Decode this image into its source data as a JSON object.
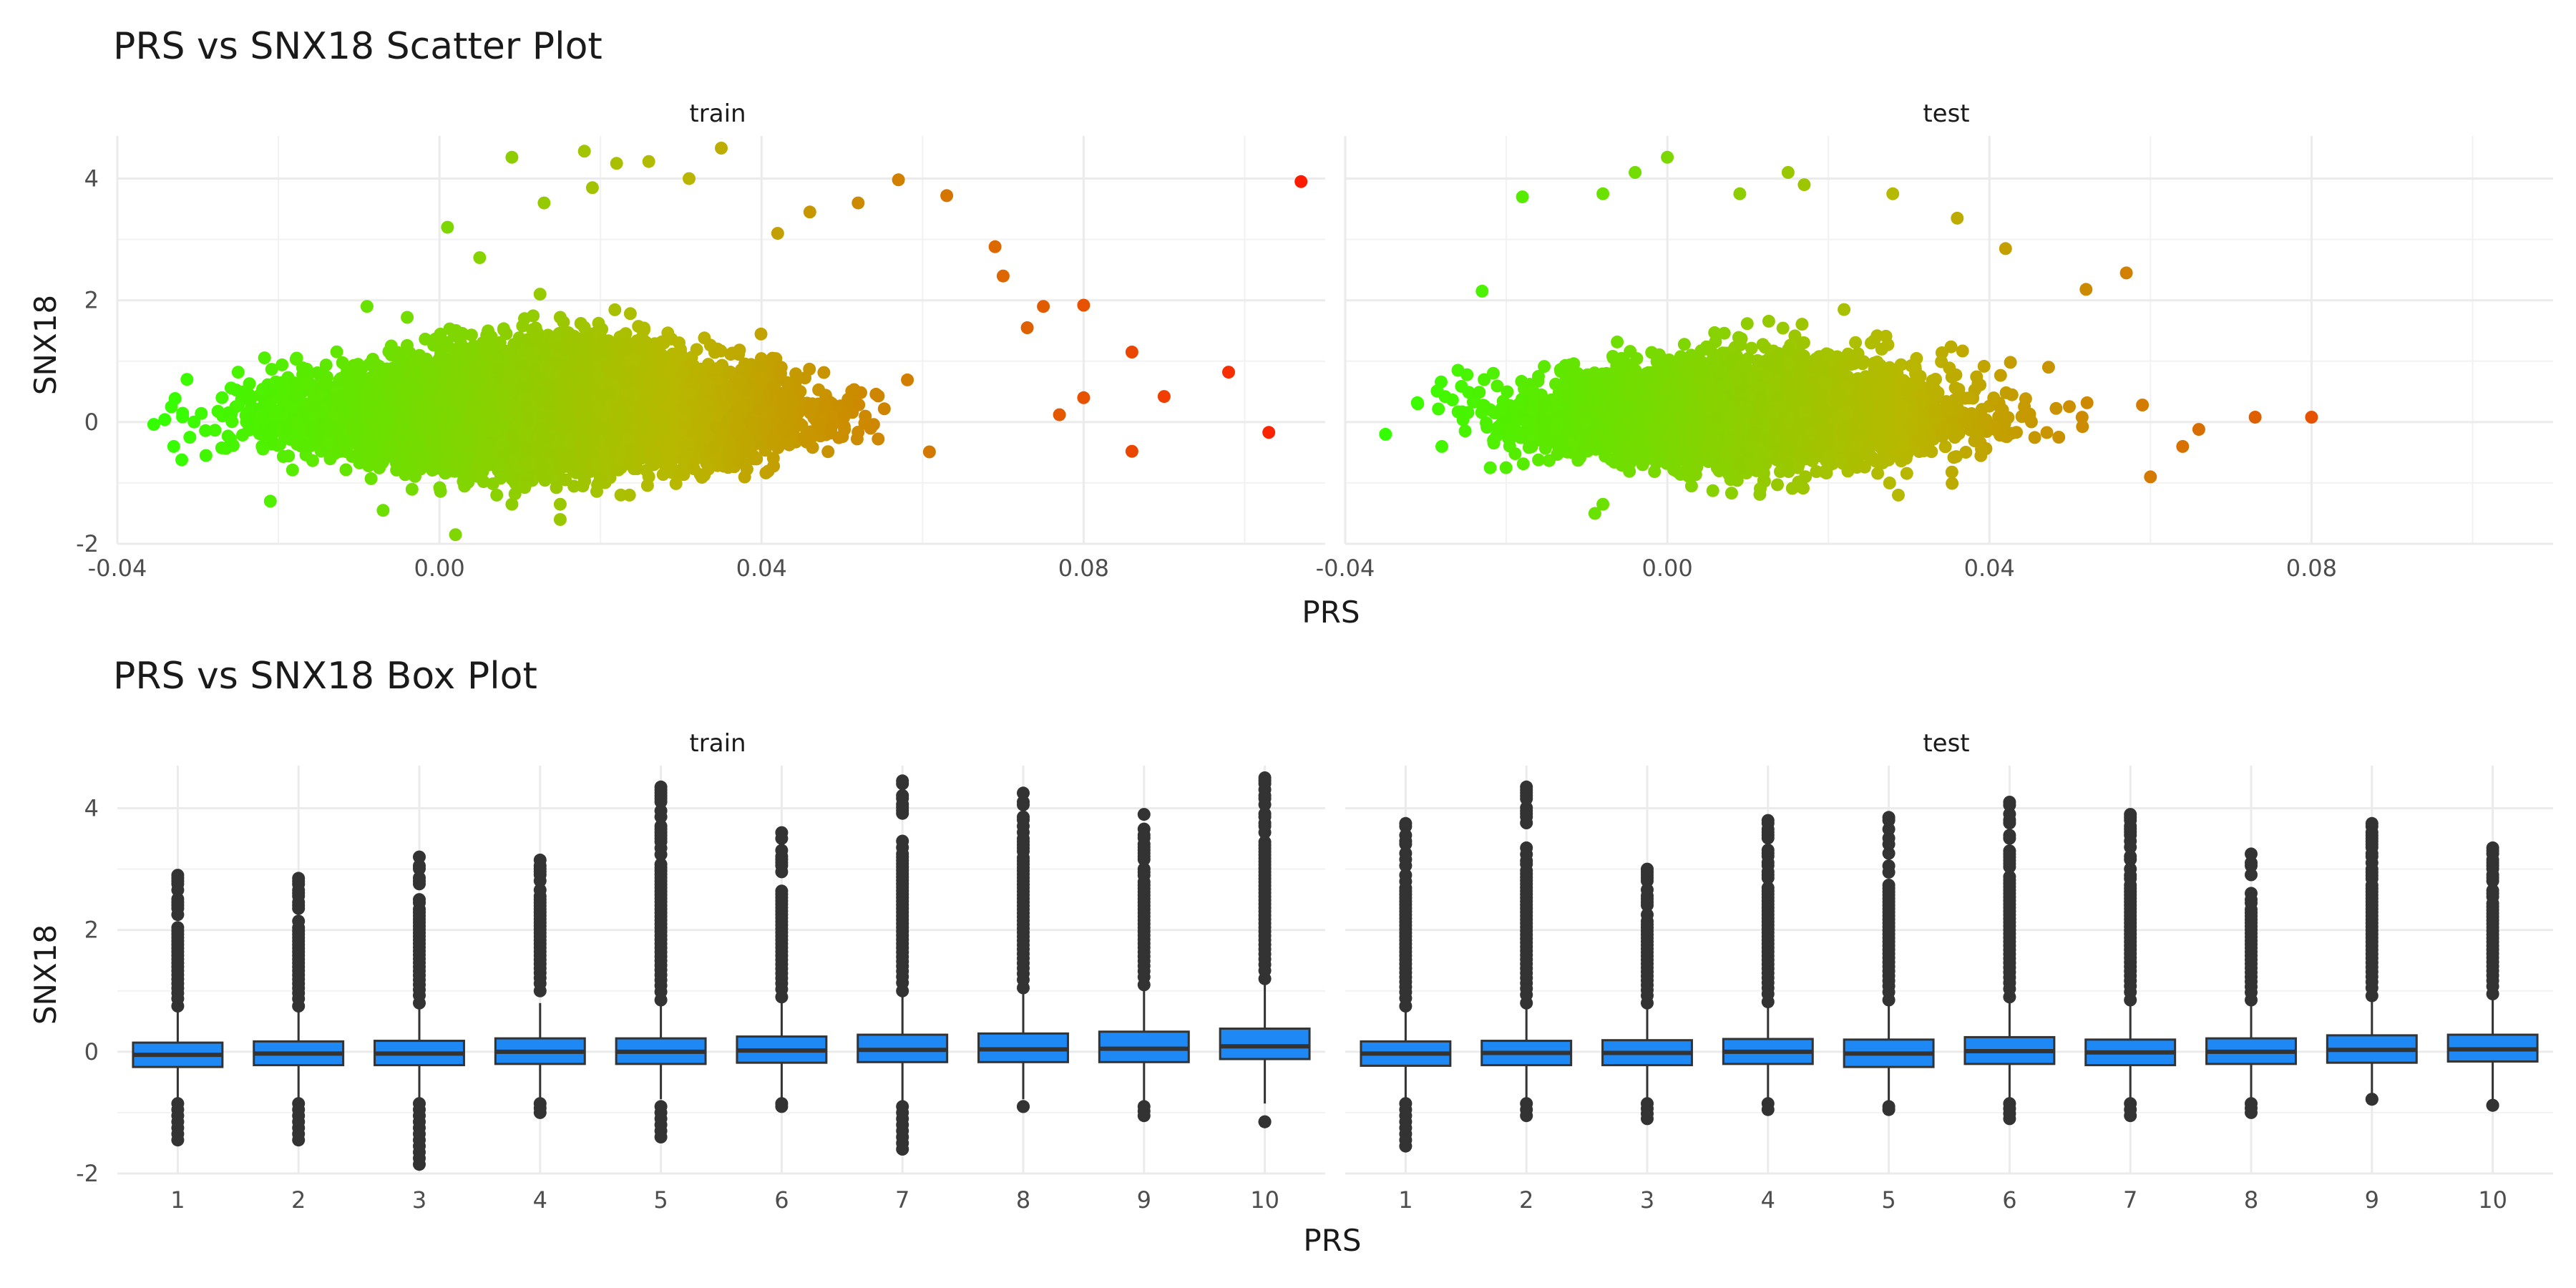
{
  "chart_data": [
    {
      "type": "scatter",
      "title": "PRS vs SNX18 Scatter Plot",
      "xlabel": "PRS",
      "ylabel": "SNX18",
      "xlim": [
        -0.04,
        0.11
      ],
      "ylim": [
        -2,
        4.7
      ],
      "x_ticks": [
        "-0.04",
        "0.00",
        "0.04",
        "0.08"
      ],
      "x_tick_values": [
        -0.04,
        0.0,
        0.04,
        0.08
      ],
      "y_ticks": [
        "-2",
        "0",
        "2",
        "4"
      ],
      "y_tick_values": [
        -2,
        0,
        2,
        4
      ],
      "color_scale": {
        "low": "#33ff00",
        "mid": "#b8b800",
        "high": "#ff1a00",
        "range": [
          -0.035,
          0.108
        ]
      },
      "grid": true,
      "facets": [
        {
          "name": "train",
          "n_points": 11000,
          "cloud": {
            "x_mean": 0.012,
            "x_sd": 0.0135,
            "y_mean": 0.05,
            "y_sd_base": 0.35,
            "y_sd_slope": 5.0
          },
          "points": [
            {
              "x": 0.107,
              "y": 3.95
            },
            {
              "x": 0.103,
              "y": -0.17
            },
            {
              "x": 0.098,
              "y": 0.82
            },
            {
              "x": 0.09,
              "y": 0.42
            },
            {
              "x": 0.086,
              "y": 1.15
            },
            {
              "x": 0.086,
              "y": -0.48
            },
            {
              "x": 0.08,
              "y": 1.92
            },
            {
              "x": 0.08,
              "y": 0.4
            },
            {
              "x": 0.077,
              "y": 0.12
            },
            {
              "x": 0.075,
              "y": 1.9
            },
            {
              "x": 0.073,
              "y": 1.55
            },
            {
              "x": 0.07,
              "y": 2.4
            },
            {
              "x": 0.069,
              "y": 2.88
            },
            {
              "x": 0.063,
              "y": 3.72
            },
            {
              "x": 0.057,
              "y": 3.98
            },
            {
              "x": 0.052,
              "y": 3.6
            },
            {
              "x": 0.046,
              "y": 3.45
            },
            {
              "x": 0.042,
              "y": 3.1
            },
            {
              "x": 0.035,
              "y": 4.5
            },
            {
              "x": 0.031,
              "y": 4.0
            },
            {
              "x": 0.026,
              "y": 4.28
            },
            {
              "x": 0.022,
              "y": 4.25
            },
            {
              "x": 0.018,
              "y": 4.45
            },
            {
              "x": 0.009,
              "y": 4.35
            },
            {
              "x": 0.019,
              "y": 3.85
            },
            {
              "x": 0.013,
              "y": 3.6
            },
            {
              "x": -0.033,
              "y": -0.4
            },
            {
              "x": -0.032,
              "y": -0.62
            },
            {
              "x": -0.031,
              "y": -0.25
            },
            {
              "x": -0.029,
              "y": -0.55
            },
            {
              "x": -0.027,
              "y": 0.4
            },
            {
              "x": -0.025,
              "y": 0.82
            },
            {
              "x": -0.021,
              "y": -1.3
            },
            {
              "x": -0.007,
              "y": -1.45
            },
            {
              "x": 0.002,
              "y": -1.85
            },
            {
              "x": 0.015,
              "y": -1.6
            },
            {
              "x": 0.015,
              "y": -1.35
            },
            {
              "x": 0.009,
              "y": -1.35
            },
            {
              "x": -0.009,
              "y": 1.9
            },
            {
              "x": -0.004,
              "y": 1.72
            },
            {
              "x": 0.001,
              "y": 3.2
            },
            {
              "x": 0.005,
              "y": 2.7
            }
          ]
        },
        {
          "name": "test",
          "n_points": 4800,
          "cloud": {
            "x_mean": 0.01,
            "x_sd": 0.0125,
            "y_mean": 0.02,
            "y_sd_base": 0.33,
            "y_sd_slope": 4.5
          },
          "points": [
            {
              "x": 0.08,
              "y": 0.08
            },
            {
              "x": 0.073,
              "y": 0.08
            },
            {
              "x": 0.066,
              "y": -0.12
            },
            {
              "x": 0.064,
              "y": -0.4
            },
            {
              "x": 0.06,
              "y": -0.9
            },
            {
              "x": 0.059,
              "y": 0.28
            },
            {
              "x": 0.057,
              "y": 2.45
            },
            {
              "x": 0.052,
              "y": 2.18
            },
            {
              "x": 0.042,
              "y": 2.85
            },
            {
              "x": 0.036,
              "y": 3.35
            },
            {
              "x": 0.028,
              "y": 3.75
            },
            {
              "x": 0.017,
              "y": 3.9
            },
            {
              "x": 0.015,
              "y": 4.1
            },
            {
              "x": 0.009,
              "y": 3.75
            },
            {
              "x": 0.0,
              "y": 4.35
            },
            {
              "x": -0.004,
              "y": 4.1
            },
            {
              "x": -0.008,
              "y": 3.75
            },
            {
              "x": -0.018,
              "y": 3.7
            },
            {
              "x": -0.023,
              "y": 2.15
            },
            {
              "x": -0.035,
              "y": -0.2
            },
            {
              "x": -0.031,
              "y": 0.3
            },
            {
              "x": -0.028,
              "y": -0.4
            },
            {
              "x": -0.026,
              "y": 0.85
            },
            {
              "x": -0.022,
              "y": -0.75
            },
            {
              "x": -0.009,
              "y": -1.5
            },
            {
              "x": -0.008,
              "y": -1.35
            },
            {
              "x": 0.003,
              "y": -1.05
            }
          ]
        }
      ]
    },
    {
      "type": "box",
      "title": "PRS vs SNX18 Box Plot",
      "xlabel": "PRS",
      "ylabel": "SNX18",
      "ylim": [
        -2,
        4.7
      ],
      "categories": [
        "1",
        "2",
        "3",
        "4",
        "5",
        "6",
        "7",
        "8",
        "9",
        "10"
      ],
      "y_ticks": [
        "-2",
        "0",
        "2",
        "4"
      ],
      "y_tick_values": [
        -2,
        0,
        2,
        4
      ],
      "box_color": "#1e88f5",
      "outline_color": "#333333",
      "grid": true,
      "facets": [
        {
          "name": "train",
          "boxes": [
            {
              "q1": -0.25,
              "median": -0.05,
              "q3": 0.15,
              "whisker_low": -0.78,
              "whisker_high": 0.7,
              "outliers_high": [
                0.75,
                2.9
              ],
              "outliers_low": [
                -0.85,
                -1.45
              ]
            },
            {
              "q1": -0.22,
              "median": -0.03,
              "q3": 0.17,
              "whisker_low": -0.78,
              "whisker_high": 0.72,
              "outliers_high": [
                0.75,
                2.85
              ],
              "outliers_low": [
                -0.85,
                -1.45
              ]
            },
            {
              "q1": -0.22,
              "median": -0.03,
              "q3": 0.18,
              "whisker_low": -0.78,
              "whisker_high": 0.73,
              "outliers_high": [
                0.8,
                3.2
              ],
              "outliers_low": [
                -0.85,
                -1.85
              ]
            },
            {
              "q1": -0.2,
              "median": 0.0,
              "q3": 0.22,
              "whisker_low": -0.78,
              "whisker_high": 0.8,
              "outliers_high": [
                1.0,
                3.15
              ],
              "outliers_low": [
                -0.85,
                -1.0
              ]
            },
            {
              "q1": -0.2,
              "median": 0.0,
              "q3": 0.22,
              "whisker_low": -0.78,
              "whisker_high": 0.82,
              "outliers_high": [
                0.85,
                4.35
              ],
              "outliers_low": [
                -0.9,
                -1.4
              ]
            },
            {
              "q1": -0.18,
              "median": 0.02,
              "q3": 0.25,
              "whisker_low": -0.78,
              "whisker_high": 0.85,
              "outliers_high": [
                0.9,
                3.6
              ],
              "outliers_low": [
                -0.85,
                -0.9
              ]
            },
            {
              "q1": -0.17,
              "median": 0.03,
              "q3": 0.28,
              "whisker_low": -0.8,
              "whisker_high": 0.95,
              "outliers_high": [
                1.0,
                4.45
              ],
              "outliers_low": [
                -0.9,
                -1.6
              ]
            },
            {
              "q1": -0.17,
              "median": 0.04,
              "q3": 0.3,
              "whisker_low": -0.78,
              "whisker_high": 1.0,
              "outliers_high": [
                1.05,
                4.25
              ],
              "outliers_low": [
                -0.9,
                -0.9
              ]
            },
            {
              "q1": -0.17,
              "median": 0.05,
              "q3": 0.33,
              "whisker_low": -0.8,
              "whisker_high": 1.08,
              "outliers_high": [
                1.1,
                3.9
              ],
              "outliers_low": [
                -0.9,
                -1.05
              ]
            },
            {
              "q1": -0.12,
              "median": 0.09,
              "q3": 0.38,
              "whisker_low": -0.85,
              "whisker_high": 1.15,
              "outliers_high": [
                1.2,
                4.5
              ],
              "outliers_low": [
                -1.15,
                -1.15
              ]
            }
          ]
        },
        {
          "name": "test",
          "boxes": [
            {
              "q1": -0.23,
              "median": -0.03,
              "q3": 0.17,
              "whisker_low": -0.78,
              "whisker_high": 0.72,
              "outliers_high": [
                0.75,
                3.75
              ],
              "outliers_low": [
                -0.85,
                -1.55
              ]
            },
            {
              "q1": -0.22,
              "median": -0.02,
              "q3": 0.18,
              "whisker_low": -0.78,
              "whisker_high": 0.75,
              "outliers_high": [
                0.8,
                4.35
              ],
              "outliers_low": [
                -0.85,
                -1.05
              ]
            },
            {
              "q1": -0.22,
              "median": -0.02,
              "q3": 0.19,
              "whisker_low": -0.78,
              "whisker_high": 0.75,
              "outliers_high": [
                0.8,
                3.0
              ],
              "outliers_low": [
                -0.85,
                -1.1
              ]
            },
            {
              "q1": -0.2,
              "median": 0.0,
              "q3": 0.21,
              "whisker_low": -0.78,
              "whisker_high": 0.78,
              "outliers_high": [
                0.82,
                3.8
              ],
              "outliers_low": [
                -0.85,
                -0.95
              ]
            },
            {
              "q1": -0.25,
              "median": -0.03,
              "q3": 0.2,
              "whisker_low": -0.85,
              "whisker_high": 0.82,
              "outliers_high": [
                0.85,
                3.85
              ],
              "outliers_low": [
                -0.9,
                -0.95
              ]
            },
            {
              "q1": -0.2,
              "median": 0.01,
              "q3": 0.24,
              "whisker_low": -0.8,
              "whisker_high": 0.85,
              "outliers_high": [
                0.9,
                4.1
              ],
              "outliers_low": [
                -0.85,
                -1.1
              ]
            },
            {
              "q1": -0.22,
              "median": -0.01,
              "q3": 0.2,
              "whisker_low": -0.8,
              "whisker_high": 0.8,
              "outliers_high": [
                0.85,
                3.9
              ],
              "outliers_low": [
                -0.85,
                -1.05
              ]
            },
            {
              "q1": -0.2,
              "median": 0.0,
              "q3": 0.22,
              "whisker_low": -0.8,
              "whisker_high": 0.82,
              "outliers_high": [
                0.85,
                3.25
              ],
              "outliers_low": [
                -0.85,
                -1.0
              ]
            },
            {
              "q1": -0.18,
              "median": 0.03,
              "q3": 0.27,
              "whisker_low": -0.78,
              "whisker_high": 0.88,
              "outliers_high": [
                0.92,
                3.75
              ],
              "outliers_low": [
                -0.78,
                -0.78
              ]
            },
            {
              "q1": -0.16,
              "median": 0.04,
              "q3": 0.28,
              "whisker_low": -0.8,
              "whisker_high": 0.92,
              "outliers_high": [
                0.95,
                3.35
              ],
              "outliers_low": [
                -0.88,
                -0.88
              ]
            }
          ]
        }
      ]
    }
  ]
}
